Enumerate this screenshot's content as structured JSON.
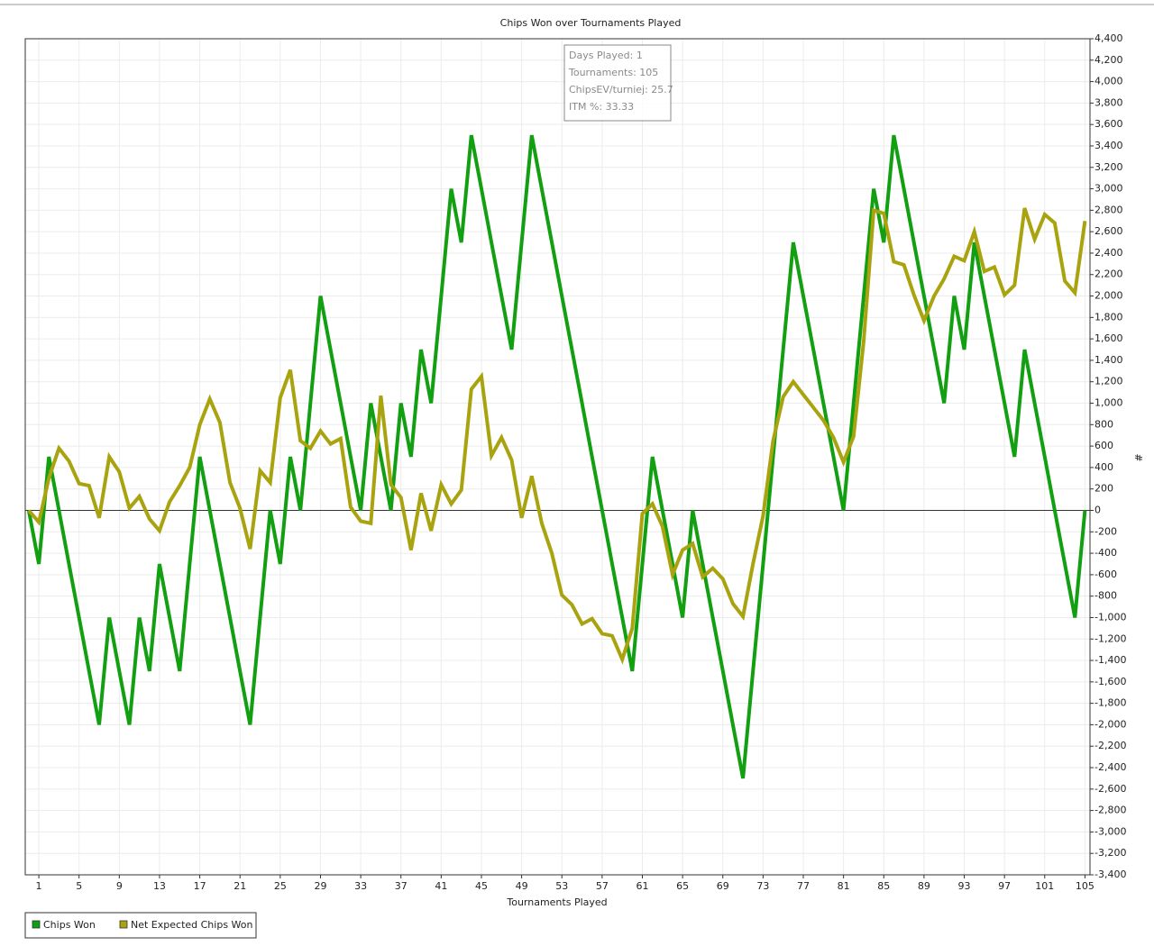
{
  "chart_data": {
    "type": "line",
    "title": "Chips Won over Tournaments Played",
    "x_label": "Tournaments Played",
    "y_label": "#",
    "tooltip": [
      "Days Played: 1",
      "Tournaments: 105",
      "ChipsEV/turniej: 25.7",
      "ITM %: 33.33"
    ],
    "xlim": [
      -0.35,
      105.5
    ],
    "ylim": [
      -3400,
      4400
    ],
    "grid": true,
    "legend": "bottom-left",
    "xticks": [
      1,
      5,
      9,
      13,
      17,
      21,
      25,
      29,
      33,
      37,
      41,
      45,
      49,
      53,
      57,
      61,
      65,
      69,
      73,
      77,
      81,
      85,
      89,
      93,
      97,
      101,
      105
    ],
    "yticks": [
      {
        "value": -3400,
        "label": "-3,400"
      },
      {
        "value": -3200,
        "label": "-3,200"
      },
      {
        "value": -3000,
        "label": "-3,000"
      },
      {
        "value": -2800,
        "label": "-2,800"
      },
      {
        "value": -2600,
        "label": "-2,600"
      },
      {
        "value": -2400,
        "label": "-2,400"
      },
      {
        "value": -2200,
        "label": "-2,200"
      },
      {
        "value": -2000,
        "label": "-2,000"
      },
      {
        "value": -1800,
        "label": "-1,800"
      },
      {
        "value": -1600,
        "label": "-1,600"
      },
      {
        "value": -1400,
        "label": "-1,400"
      },
      {
        "value": -1200,
        "label": "-1,200"
      },
      {
        "value": -1000,
        "label": "-1,000"
      },
      -800,
      -600,
      -400,
      -200,
      0,
      200,
      400,
      600,
      800,
      {
        "value": 1000,
        "label": "1,000"
      },
      {
        "value": 1200,
        "label": "1,200"
      },
      {
        "value": 1400,
        "label": "1,400"
      },
      {
        "value": 1600,
        "label": "1,600"
      },
      {
        "value": 1800,
        "label": "1,800"
      },
      {
        "value": 2000,
        "label": "2,000"
      },
      {
        "value": 2200,
        "label": "2,200"
      },
      {
        "value": 2400,
        "label": "2,400"
      },
      {
        "value": 2600,
        "label": "2,600"
      },
      {
        "value": 2800,
        "label": "2,800"
      },
      {
        "value": 3000,
        "label": "3,000"
      },
      {
        "value": 3200,
        "label": "3,200"
      },
      {
        "value": 3400,
        "label": "3,400"
      },
      {
        "value": 3600,
        "label": "3,600"
      },
      {
        "value": 3800,
        "label": "3,800"
      },
      {
        "value": 4000,
        "label": "4,000"
      },
      {
        "value": 4200,
        "label": "4,200"
      },
      {
        "value": 4400,
        "label": "4,400"
      }
    ],
    "x": [
      0,
      1,
      2,
      3,
      4,
      5,
      6,
      7,
      8,
      9,
      10,
      11,
      12,
      13,
      14,
      15,
      16,
      17,
      18,
      19,
      20,
      21,
      22,
      23,
      24,
      25,
      26,
      27,
      28,
      29,
      30,
      31,
      32,
      33,
      34,
      35,
      36,
      37,
      38,
      39,
      40,
      41,
      42,
      43,
      44,
      45,
      46,
      47,
      48,
      49,
      50,
      51,
      52,
      53,
      54,
      55,
      56,
      57,
      58,
      59,
      60,
      61,
      62,
      63,
      64,
      65,
      66,
      67,
      68,
      69,
      70,
      71,
      72,
      73,
      74,
      75,
      76,
      77,
      78,
      79,
      80,
      81,
      82,
      83,
      84,
      85,
      86,
      87,
      88,
      89,
      90,
      91,
      92,
      93,
      94,
      95,
      96,
      97,
      98,
      99,
      100,
      101,
      102,
      103,
      104,
      105
    ],
    "series": [
      {
        "name": "Chips Won",
        "color": "#12a012",
        "values": [
          0,
          -500,
          500,
          0,
          -500,
          -1000,
          -1500,
          -2000,
          -1000,
          -1500,
          -2000,
          -1000,
          -1500,
          -500,
          -1000,
          -1500,
          -500,
          500,
          0,
          -500,
          -1000,
          -1500,
          -2000,
          -1000,
          0,
          -500,
          500,
          0,
          1000,
          2000,
          1500,
          1000,
          500,
          0,
          1000,
          500,
          0,
          1000,
          500,
          1500,
          1000,
          2000,
          3000,
          2500,
          3500,
          3000,
          2500,
          2000,
          1500,
          2500,
          3500,
          3000,
          2500,
          2000,
          1500,
          1000,
          500,
          0,
          -500,
          -1000,
          -1500,
          -500,
          500,
          0,
          -500,
          -1000,
          0,
          -500,
          -1000,
          -1500,
          -2000,
          -2500,
          -1500,
          -500,
          500,
          1500,
          2500,
          2000,
          1500,
          1000,
          500,
          0,
          1000,
          2000,
          3000,
          2500,
          3500,
          3000,
          2500,
          2000,
          1500,
          1000,
          2000,
          1500,
          2500,
          2000,
          1500,
          1000,
          500,
          1500,
          1000,
          500,
          0,
          -500,
          -1000,
          0
        ]
      },
      {
        "name": "Net Expected Chips Won",
        "color": "#a8a30f",
        "values": [
          0,
          -110,
          300,
          580,
          460,
          250,
          230,
          -70,
          500,
          360,
          20,
          130,
          -80,
          -190,
          80,
          230,
          400,
          800,
          1040,
          820,
          260,
          20,
          -360,
          370,
          260,
          1050,
          1310,
          650,
          580,
          740,
          620,
          670,
          30,
          -100,
          -120,
          1070,
          240,
          120,
          -370,
          160,
          -190,
          240,
          60,
          190,
          1130,
          1250,
          510,
          680,
          470,
          -70,
          320,
          -120,
          -400,
          -790,
          -880,
          -1060,
          -1010,
          -1150,
          -1170,
          -1390,
          -1100,
          -30,
          60,
          -150,
          -600,
          -370,
          -310,
          -620,
          -540,
          -640,
          -870,
          -990,
          -500,
          -50,
          650,
          1060,
          1200,
          1080,
          960,
          840,
          680,
          450,
          690,
          1580,
          2800,
          2770,
          2320,
          2290,
          2010,
          1770,
          2000,
          2160,
          2370,
          2330,
          2600,
          2230,
          2270,
          2010,
          2100,
          2820,
          2530,
          2760,
          2680,
          2140,
          2030,
          2700
        ]
      }
    ]
  }
}
